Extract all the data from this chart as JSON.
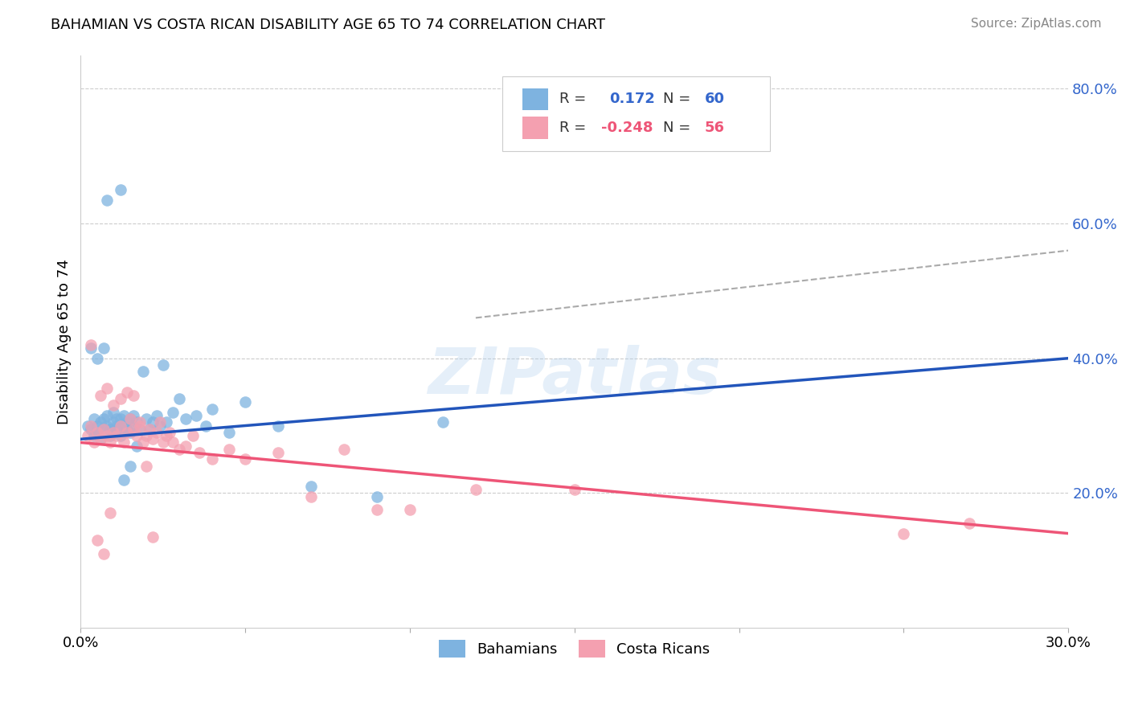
{
  "title": "BAHAMIAN VS COSTA RICAN DISABILITY AGE 65 TO 74 CORRELATION CHART",
  "source": "Source: ZipAtlas.com",
  "ylabel": "Disability Age 65 to 74",
  "xlim": [
    0.0,
    0.3
  ],
  "ylim": [
    0.0,
    0.85
  ],
  "xticks": [
    0.0,
    0.05,
    0.1,
    0.15,
    0.2,
    0.25,
    0.3
  ],
  "yticks_right": [
    0.2,
    0.4,
    0.6,
    0.8
  ],
  "ytick_right_labels": [
    "20.0%",
    "40.0%",
    "60.0%",
    "80.0%"
  ],
  "blue_color": "#7EB3E0",
  "pink_color": "#F4A0B0",
  "blue_line_color": "#2255BB",
  "pink_line_color": "#EE5577",
  "dash_color": "#AAAAAA",
  "watermark": "ZIPatlas",
  "bahamians_x": [
    0.002,
    0.003,
    0.004,
    0.004,
    0.005,
    0.005,
    0.006,
    0.006,
    0.007,
    0.007,
    0.008,
    0.008,
    0.009,
    0.009,
    0.01,
    0.01,
    0.011,
    0.011,
    0.012,
    0.012,
    0.013,
    0.013,
    0.014,
    0.014,
    0.015,
    0.015,
    0.016,
    0.016,
    0.017,
    0.018,
    0.019,
    0.02,
    0.021,
    0.022,
    0.023,
    0.024,
    0.025,
    0.026,
    0.028,
    0.03,
    0.032,
    0.035,
    0.038,
    0.04,
    0.045,
    0.05,
    0.06,
    0.07,
    0.09,
    0.11,
    0.003,
    0.005,
    0.007,
    0.009,
    0.011,
    0.013,
    0.015,
    0.017,
    0.008,
    0.012
  ],
  "bahamians_y": [
    0.3,
    0.295,
    0.285,
    0.31,
    0.3,
    0.29,
    0.305,
    0.28,
    0.31,
    0.295,
    0.3,
    0.315,
    0.295,
    0.285,
    0.305,
    0.32,
    0.295,
    0.3,
    0.31,
    0.285,
    0.3,
    0.315,
    0.295,
    0.305,
    0.31,
    0.29,
    0.3,
    0.315,
    0.305,
    0.295,
    0.38,
    0.31,
    0.295,
    0.305,
    0.315,
    0.3,
    0.39,
    0.305,
    0.32,
    0.34,
    0.31,
    0.315,
    0.3,
    0.325,
    0.29,
    0.335,
    0.3,
    0.21,
    0.195,
    0.305,
    0.415,
    0.4,
    0.415,
    0.295,
    0.31,
    0.22,
    0.24,
    0.27,
    0.635,
    0.65
  ],
  "costaricans_x": [
    0.002,
    0.003,
    0.004,
    0.005,
    0.006,
    0.007,
    0.008,
    0.009,
    0.01,
    0.011,
    0.012,
    0.013,
    0.014,
    0.015,
    0.016,
    0.017,
    0.018,
    0.019,
    0.02,
    0.021,
    0.022,
    0.023,
    0.024,
    0.025,
    0.026,
    0.027,
    0.028,
    0.03,
    0.032,
    0.034,
    0.036,
    0.04,
    0.045,
    0.05,
    0.06,
    0.07,
    0.08,
    0.09,
    0.1,
    0.12,
    0.006,
    0.008,
    0.01,
    0.012,
    0.014,
    0.016,
    0.018,
    0.02,
    0.022,
    0.15,
    0.003,
    0.005,
    0.007,
    0.009,
    0.27,
    0.25
  ],
  "costaricans_y": [
    0.285,
    0.3,
    0.275,
    0.29,
    0.28,
    0.295,
    0.285,
    0.275,
    0.29,
    0.285,
    0.3,
    0.275,
    0.29,
    0.31,
    0.295,
    0.285,
    0.3,
    0.275,
    0.285,
    0.295,
    0.28,
    0.29,
    0.305,
    0.275,
    0.285,
    0.29,
    0.275,
    0.265,
    0.27,
    0.285,
    0.26,
    0.25,
    0.265,
    0.25,
    0.26,
    0.195,
    0.265,
    0.175,
    0.175,
    0.205,
    0.345,
    0.355,
    0.33,
    0.34,
    0.35,
    0.345,
    0.305,
    0.24,
    0.135,
    0.205,
    0.42,
    0.13,
    0.11,
    0.17,
    0.155,
    0.14
  ]
}
